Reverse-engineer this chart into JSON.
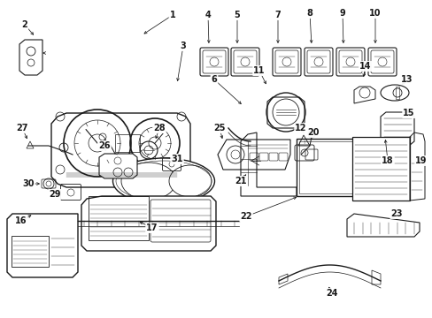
{
  "bg_color": "#ffffff",
  "line_color": "#1a1a1a",
  "figsize": [
    4.89,
    3.6
  ],
  "dpi": 100,
  "lw": 0.7,
  "label_fs": 7.0
}
